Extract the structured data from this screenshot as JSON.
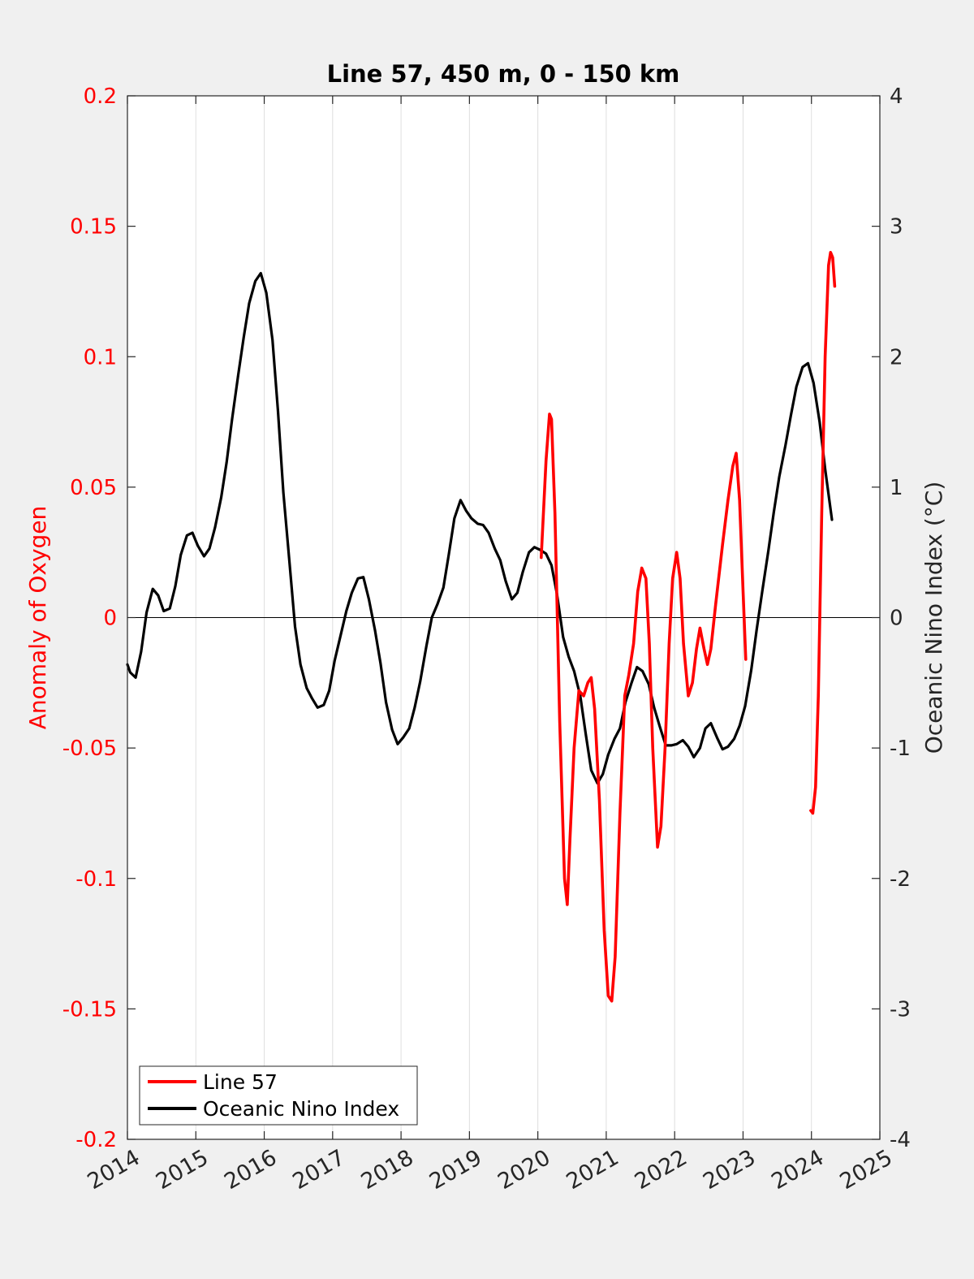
{
  "chart_data": {
    "type": "line",
    "title": "Line 57, 450 m, 0 - 150 km",
    "xlabel": "",
    "ylabel_left": "Anomaly of Oxygen",
    "ylabel_right": "Oceanic Nino Index (°C)",
    "xlim": [
      2014,
      2025
    ],
    "ylim_left": [
      -0.2,
      0.2
    ],
    "ylim_right": [
      -4,
      4
    ],
    "x_ticks": [
      "2014",
      "2015",
      "2016",
      "2017",
      "2018",
      "2019",
      "2020",
      "2021",
      "2022",
      "2023",
      "2024",
      "2025"
    ],
    "y_left_ticks": [
      "0.2",
      "0.15",
      "0.1",
      "0.05",
      "0",
      "-0.05",
      "-0.1",
      "-0.15",
      "-0.2"
    ],
    "y_right_ticks": [
      "4",
      "3",
      "2",
      "1",
      "0",
      "-1",
      "-2",
      "-3",
      "-4"
    ],
    "grid": "vertical",
    "legend_position": "bottom-left",
    "colors": {
      "line57": "#ff0000",
      "oni": "#000000",
      "left_axis": "#ff0000"
    },
    "series": [
      {
        "name": "Line 57",
        "axis": "left",
        "color": "#ff0000",
        "segments": [
          [
            [
              2020.05,
              0.023
            ],
            [
              2020.12,
              0.06
            ],
            [
              2020.17,
              0.078
            ],
            [
              2020.2,
              0.076
            ],
            [
              2020.25,
              0.04
            ],
            [
              2020.32,
              -0.04
            ],
            [
              2020.39,
              -0.1
            ],
            [
              2020.43,
              -0.11
            ],
            [
              2020.47,
              -0.085
            ],
            [
              2020.53,
              -0.05
            ],
            [
              2020.6,
              -0.028
            ],
            [
              2020.67,
              -0.03
            ],
            [
              2020.73,
              -0.025
            ],
            [
              2020.78,
              -0.023
            ],
            [
              2020.83,
              -0.035
            ],
            [
              2020.9,
              -0.07
            ],
            [
              2020.97,
              -0.12
            ],
            [
              2021.03,
              -0.145
            ],
            [
              2021.08,
              -0.147
            ],
            [
              2021.13,
              -0.13
            ],
            [
              2021.2,
              -0.075
            ],
            [
              2021.27,
              -0.03
            ],
            [
              2021.33,
              -0.022
            ],
            [
              2021.4,
              -0.01
            ],
            [
              2021.46,
              0.01
            ],
            [
              2021.52,
              0.019
            ],
            [
              2021.58,
              0.015
            ],
            [
              2021.63,
              -0.01
            ],
            [
              2021.68,
              -0.05
            ],
            [
              2021.75,
              -0.088
            ],
            [
              2021.8,
              -0.08
            ],
            [
              2021.86,
              -0.05
            ],
            [
              2021.92,
              -0.01
            ],
            [
              2021.97,
              0.015
            ],
            [
              2022.03,
              0.025
            ],
            [
              2022.08,
              0.015
            ],
            [
              2022.13,
              -0.01
            ],
            [
              2022.2,
              -0.03
            ],
            [
              2022.26,
              -0.025
            ],
            [
              2022.32,
              -0.012
            ],
            [
              2022.37,
              -0.004
            ],
            [
              2022.43,
              -0.012
            ],
            [
              2022.48,
              -0.018
            ],
            [
              2022.53,
              -0.012
            ],
            [
              2022.6,
              0.005
            ],
            [
              2022.7,
              0.028
            ],
            [
              2022.78,
              0.045
            ],
            [
              2022.85,
              0.058
            ],
            [
              2022.9,
              0.063
            ],
            [
              2022.95,
              0.045
            ],
            [
              2023.0,
              0.01
            ],
            [
              2023.04,
              -0.016
            ]
          ],
          [
            [
              2023.99,
              -0.074
            ],
            [
              2024.02,
              -0.075
            ],
            [
              2024.06,
              -0.065
            ],
            [
              2024.1,
              -0.03
            ],
            [
              2024.15,
              0.04
            ],
            [
              2024.2,
              0.1
            ],
            [
              2024.25,
              0.135
            ],
            [
              2024.28,
              0.14
            ],
            [
              2024.31,
              0.138
            ],
            [
              2024.34,
              0.127
            ]
          ]
        ]
      },
      {
        "name": "Oceanic Nino Index",
        "axis": "right",
        "color": "#000000",
        "points": [
          [
            2014.0,
            -0.36
          ],
          [
            2014.04,
            -0.42
          ],
          [
            2014.12,
            -0.46
          ],
          [
            2014.2,
            -0.26
          ],
          [
            2014.28,
            0.04
          ],
          [
            2014.37,
            0.22
          ],
          [
            2014.45,
            0.17
          ],
          [
            2014.53,
            0.05
          ],
          [
            2014.62,
            0.07
          ],
          [
            2014.7,
            0.24
          ],
          [
            2014.78,
            0.48
          ],
          [
            2014.87,
            0.63
          ],
          [
            2014.95,
            0.65
          ],
          [
            2015.03,
            0.55
          ],
          [
            2015.12,
            0.47
          ],
          [
            2015.2,
            0.53
          ],
          [
            2015.28,
            0.69
          ],
          [
            2015.37,
            0.92
          ],
          [
            2015.45,
            1.19
          ],
          [
            2015.53,
            1.52
          ],
          [
            2015.62,
            1.86
          ],
          [
            2015.7,
            2.15
          ],
          [
            2015.78,
            2.41
          ],
          [
            2015.87,
            2.58
          ],
          [
            2015.95,
            2.64
          ],
          [
            2016.03,
            2.49
          ],
          [
            2016.12,
            2.13
          ],
          [
            2016.2,
            1.59
          ],
          [
            2016.28,
            0.96
          ],
          [
            2016.37,
            0.42
          ],
          [
            2016.45,
            -0.07
          ],
          [
            2016.53,
            -0.36
          ],
          [
            2016.62,
            -0.54
          ],
          [
            2016.7,
            -0.62
          ],
          [
            2016.78,
            -0.69
          ],
          [
            2016.87,
            -0.67
          ],
          [
            2016.95,
            -0.56
          ],
          [
            2017.03,
            -0.33
          ],
          [
            2017.12,
            -0.13
          ],
          [
            2017.2,
            0.05
          ],
          [
            2017.28,
            0.19
          ],
          [
            2017.37,
            0.3
          ],
          [
            2017.45,
            0.31
          ],
          [
            2017.53,
            0.14
          ],
          [
            2017.62,
            -0.1
          ],
          [
            2017.7,
            -0.35
          ],
          [
            2017.78,
            -0.65
          ],
          [
            2017.87,
            -0.86
          ],
          [
            2017.95,
            -0.97
          ],
          [
            2018.03,
            -0.92
          ],
          [
            2018.12,
            -0.85
          ],
          [
            2018.2,
            -0.69
          ],
          [
            2018.28,
            -0.49
          ],
          [
            2018.37,
            -0.22
          ],
          [
            2018.45,
            0.0
          ],
          [
            2018.53,
            0.1
          ],
          [
            2018.62,
            0.23
          ],
          [
            2018.7,
            0.49
          ],
          [
            2018.78,
            0.76
          ],
          [
            2018.87,
            0.9
          ],
          [
            2018.95,
            0.82
          ],
          [
            2019.03,
            0.76
          ],
          [
            2019.12,
            0.72
          ],
          [
            2019.2,
            0.71
          ],
          [
            2019.28,
            0.65
          ],
          [
            2019.37,
            0.53
          ],
          [
            2019.45,
            0.44
          ],
          [
            2019.53,
            0.28
          ],
          [
            2019.62,
            0.14
          ],
          [
            2019.7,
            0.19
          ],
          [
            2019.78,
            0.35
          ],
          [
            2019.87,
            0.5
          ],
          [
            2019.95,
            0.54
          ],
          [
            2020.03,
            0.52
          ],
          [
            2020.12,
            0.49
          ],
          [
            2020.2,
            0.4
          ],
          [
            2020.28,
            0.18
          ],
          [
            2020.37,
            -0.15
          ],
          [
            2020.45,
            -0.3
          ],
          [
            2020.53,
            -0.41
          ],
          [
            2020.62,
            -0.6
          ],
          [
            2020.7,
            -0.89
          ],
          [
            2020.78,
            -1.17
          ],
          [
            2020.87,
            -1.27
          ],
          [
            2020.95,
            -1.2
          ],
          [
            2021.03,
            -1.05
          ],
          [
            2021.12,
            -0.93
          ],
          [
            2021.2,
            -0.85
          ],
          [
            2021.28,
            -0.65
          ],
          [
            2021.37,
            -0.5
          ],
          [
            2021.45,
            -0.38
          ],
          [
            2021.53,
            -0.41
          ],
          [
            2021.62,
            -0.51
          ],
          [
            2021.7,
            -0.69
          ],
          [
            2021.78,
            -0.83
          ],
          [
            2021.87,
            -0.98
          ],
          [
            2021.95,
            -0.98
          ],
          [
            2022.03,
            -0.97
          ],
          [
            2022.12,
            -0.94
          ],
          [
            2022.2,
            -0.99
          ],
          [
            2022.28,
            -1.07
          ],
          [
            2022.37,
            -1.0
          ],
          [
            2022.45,
            -0.85
          ],
          [
            2022.53,
            -0.81
          ],
          [
            2022.62,
            -0.92
          ],
          [
            2022.7,
            -1.01
          ],
          [
            2022.78,
            -0.99
          ],
          [
            2022.87,
            -0.93
          ],
          [
            2022.95,
            -0.83
          ],
          [
            2023.03,
            -0.68
          ],
          [
            2023.12,
            -0.4
          ],
          [
            2023.2,
            -0.09
          ],
          [
            2023.28,
            0.2
          ],
          [
            2023.37,
            0.51
          ],
          [
            2023.45,
            0.81
          ],
          [
            2023.53,
            1.08
          ],
          [
            2023.62,
            1.32
          ],
          [
            2023.7,
            1.55
          ],
          [
            2023.78,
            1.77
          ],
          [
            2023.87,
            1.92
          ],
          [
            2023.95,
            1.95
          ],
          [
            2024.03,
            1.8
          ],
          [
            2024.12,
            1.5
          ],
          [
            2024.2,
            1.14
          ],
          [
            2024.3,
            0.75
          ]
        ]
      }
    ]
  }
}
